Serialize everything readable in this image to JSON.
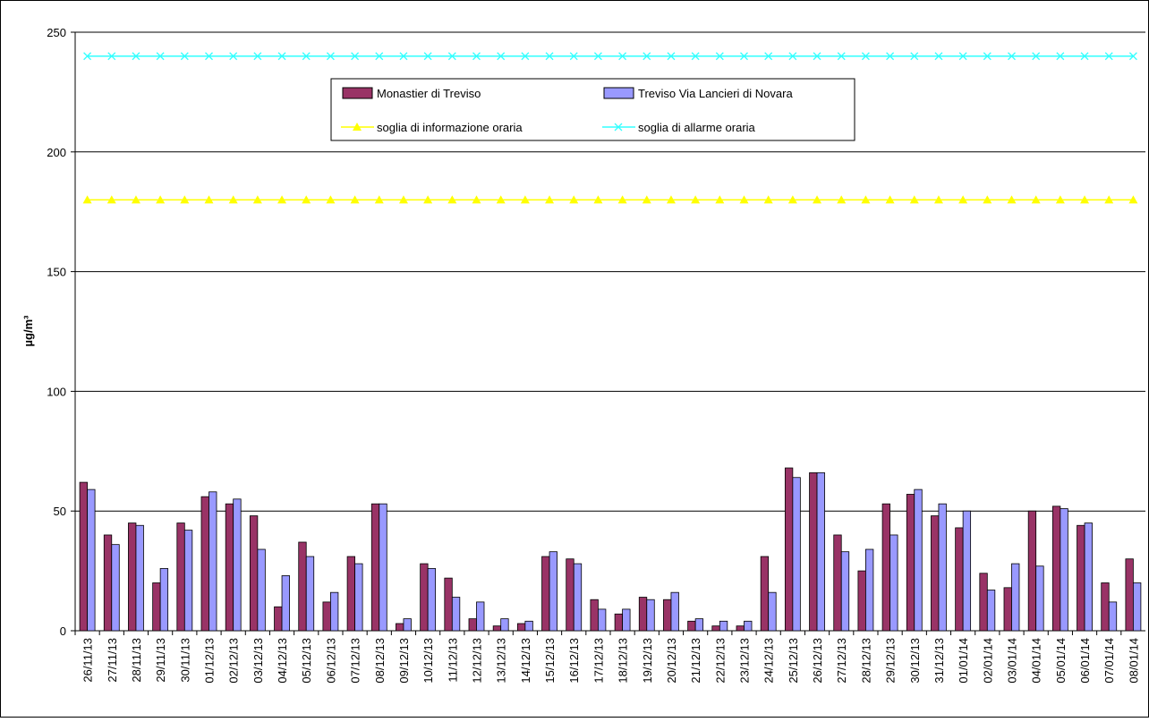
{
  "chart_data": {
    "type": "bar",
    "y_label": "µg/m³",
    "categories": [
      "26/11/13",
      "27/11/13",
      "28/11/13",
      "29/11/13",
      "30/11/13",
      "01/12/13",
      "02/12/13",
      "03/12/13",
      "04/12/13",
      "05/12/13",
      "06/12/13",
      "07/12/13",
      "08/12/13",
      "09/12/13",
      "10/12/13",
      "11/12/13",
      "12/12/13",
      "13/12/13",
      "14/12/13",
      "15/12/13",
      "16/12/13",
      "17/12/13",
      "18/12/13",
      "19/12/13",
      "20/12/13",
      "21/12/13",
      "22/12/13",
      "23/12/13",
      "24/12/13",
      "25/12/13",
      "26/12/13",
      "27/12/13",
      "28/12/13",
      "29/12/13",
      "30/12/13",
      "31/12/13",
      "01/01/14",
      "02/01/14",
      "03/01/14",
      "04/01/14",
      "05/01/14",
      "06/01/14",
      "07/01/14",
      "08/01/14"
    ],
    "series": [
      {
        "name": "Monastier di Treviso",
        "type": "bar",
        "color": "#993366",
        "values": [
          62,
          40,
          45,
          20,
          45,
          56,
          53,
          48,
          10,
          37,
          12,
          31,
          53,
          3,
          28,
          22,
          5,
          2,
          3,
          31,
          30,
          13,
          7,
          14,
          13,
          4,
          2,
          2,
          31,
          68,
          66,
          40,
          25,
          53,
          57,
          48,
          43,
          24,
          18,
          50,
          52,
          44,
          20,
          30
        ]
      },
      {
        "name": "Treviso Via Lancieri di Novara",
        "type": "bar",
        "color": "#9999ff",
        "values": [
          59,
          36,
          44,
          26,
          42,
          58,
          55,
          34,
          23,
          31,
          16,
          28,
          53,
          5,
          26,
          14,
          12,
          5,
          4,
          33,
          28,
          9,
          9,
          13,
          16,
          5,
          4,
          4,
          16,
          64,
          66,
          33,
          34,
          40,
          59,
          53,
          50,
          17,
          28,
          27,
          51,
          45,
          12,
          20
        ]
      },
      {
        "name": "soglia di informazione oraria",
        "type": "line",
        "marker": "triangle",
        "color": "#ffff00",
        "values": [
          180,
          180,
          180,
          180,
          180,
          180,
          180,
          180,
          180,
          180,
          180,
          180,
          180,
          180,
          180,
          180,
          180,
          180,
          180,
          180,
          180,
          180,
          180,
          180,
          180,
          180,
          180,
          180,
          180,
          180,
          180,
          180,
          180,
          180,
          180,
          180,
          180,
          180,
          180,
          180,
          180,
          180,
          180,
          180
        ]
      },
      {
        "name": "soglia di allarme oraria",
        "type": "line",
        "marker": "x",
        "color": "#33ffff",
        "values": [
          240,
          240,
          240,
          240,
          240,
          240,
          240,
          240,
          240,
          240,
          240,
          240,
          240,
          240,
          240,
          240,
          240,
          240,
          240,
          240,
          240,
          240,
          240,
          240,
          240,
          240,
          240,
          240,
          240,
          240,
          240,
          240,
          240,
          240,
          240,
          240,
          240,
          240,
          240,
          240,
          240,
          240,
          240,
          240
        ]
      }
    ],
    "ylim": [
      0,
      250
    ],
    "yticks": [
      0,
      50,
      100,
      150,
      200,
      250
    ],
    "grid": true
  }
}
